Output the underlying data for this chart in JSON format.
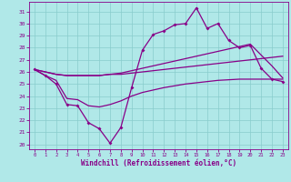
{
  "background_color": "#b0e8e8",
  "grid_color": "#88cccc",
  "line_color": "#880088",
  "hours": [
    0,
    1,
    2,
    3,
    4,
    5,
    6,
    7,
    8,
    9,
    10,
    11,
    12,
    13,
    14,
    15,
    16,
    17,
    18,
    19,
    20,
    21,
    22,
    23
  ],
  "temp": [
    26.2,
    25.7,
    25.0,
    23.3,
    23.2,
    21.8,
    21.3,
    20.1,
    21.4,
    24.7,
    27.8,
    29.1,
    29.4,
    29.9,
    30.0,
    31.3,
    29.6,
    30.0,
    28.6,
    28.0,
    28.2,
    26.3,
    25.4,
    25.2
  ],
  "line1": [
    26.2,
    26.0,
    25.8,
    25.7,
    25.7,
    25.7,
    25.7,
    25.8,
    25.8,
    25.9,
    26.0,
    26.1,
    26.2,
    26.3,
    26.4,
    26.5,
    26.6,
    26.7,
    26.8,
    26.9,
    27.0,
    27.1,
    27.2,
    27.3
  ],
  "line2": [
    26.2,
    26.0,
    25.8,
    25.7,
    25.7,
    25.7,
    25.7,
    25.8,
    25.9,
    26.1,
    26.3,
    26.5,
    26.7,
    26.9,
    27.1,
    27.3,
    27.5,
    27.7,
    27.9,
    28.1,
    28.3,
    27.4,
    26.5,
    25.5
  ],
  "line3": [
    26.2,
    25.7,
    25.3,
    23.8,
    23.7,
    23.2,
    23.1,
    23.3,
    23.6,
    24.0,
    24.3,
    24.5,
    24.7,
    24.85,
    25.0,
    25.1,
    25.2,
    25.3,
    25.35,
    25.4,
    25.4,
    25.4,
    25.4,
    25.4
  ],
  "xlabel": "Windchill (Refroidissement éolien,°C)",
  "ytick_labels": [
    "20",
    "21",
    "22",
    "23",
    "24",
    "25",
    "26",
    "27",
    "28",
    "29",
    "30",
    "31"
  ],
  "ytick_vals": [
    20,
    21,
    22,
    23,
    24,
    25,
    26,
    27,
    28,
    29,
    30,
    31
  ],
  "xtick_vals": [
    0,
    1,
    2,
    3,
    4,
    5,
    6,
    7,
    8,
    9,
    10,
    11,
    12,
    13,
    14,
    15,
    16,
    17,
    18,
    19,
    20,
    21,
    22,
    23
  ],
  "ylim": [
    19.6,
    31.8
  ],
  "xlim": [
    -0.5,
    23.5
  ]
}
